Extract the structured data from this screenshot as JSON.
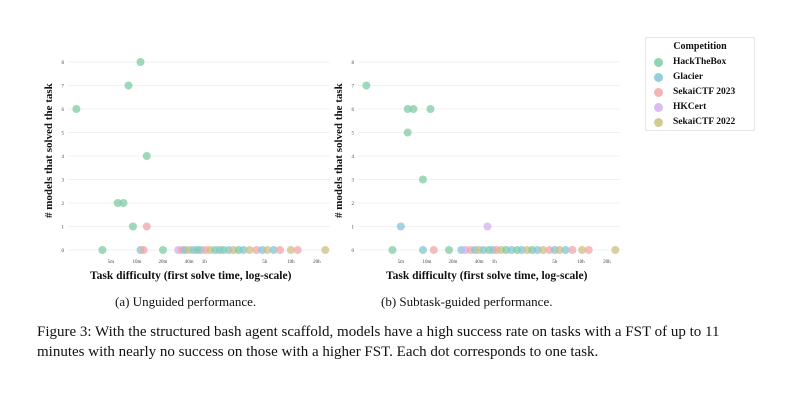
{
  "legend": {
    "title": "Competition",
    "items": [
      {
        "label": "HackTheBox",
        "color": "#7fcba5"
      },
      {
        "label": "Glacier",
        "color": "#83c6d6"
      },
      {
        "label": "SekaiCTF 2023",
        "color": "#f2a6aa"
      },
      {
        "label": "HKCert",
        "color": "#d3b0ef"
      },
      {
        "label": "SekaiCTF 2022",
        "color": "#cdbf82"
      }
    ]
  },
  "chart_data": [
    {
      "type": "scatter",
      "title": "",
      "xlabel": "Task difficulty (first solve time, log-scale)",
      "ylabel": "# models that solved the task",
      "x_scale": "log",
      "x_ticks": [
        "5m",
        "10m",
        "20m",
        "40m",
        "1h",
        "5h",
        "10h",
        "20h"
      ],
      "y_ticks": [
        "0",
        "1",
        "2",
        "3",
        "4",
        "5",
        "6",
        "7",
        "8"
      ],
      "ylim": [
        0,
        8
      ],
      "grid": true,
      "subcaption": "(a) Unguided performance.",
      "points": [
        {
          "x": 2,
          "y": 6,
          "series": "HackTheBox"
        },
        {
          "x": 11,
          "y": 8,
          "series": "HackTheBox"
        },
        {
          "x": 8,
          "y": 7,
          "series": "HackTheBox"
        },
        {
          "x": 13,
          "y": 4,
          "series": "HackTheBox"
        },
        {
          "x": 6,
          "y": 2,
          "series": "HackTheBox"
        },
        {
          "x": 7,
          "y": 2,
          "series": "HackTheBox"
        },
        {
          "x": 9,
          "y": 1,
          "series": "HackTheBox"
        },
        {
          "x": 13,
          "y": 1,
          "series": "SekaiCTF 2023"
        },
        {
          "x": 4,
          "y": 0,
          "series": "HackTheBox"
        },
        {
          "x": 11,
          "y": 0,
          "series": "Glacier"
        },
        {
          "x": 12,
          "y": 0,
          "series": "SekaiCTF 2023"
        },
        {
          "x": 20,
          "y": 0,
          "series": "HackTheBox"
        },
        {
          "x": 30,
          "y": 0,
          "series": "HKCert"
        },
        {
          "x": 33,
          "y": 0,
          "series": "SekaiCTF 2023"
        },
        {
          "x": 36,
          "y": 0,
          "series": "Glacier"
        },
        {
          "x": 40,
          "y": 0,
          "series": "SekaiCTF 2022"
        },
        {
          "x": 45,
          "y": 0,
          "series": "Glacier"
        },
        {
          "x": 50,
          "y": 0,
          "series": "HackTheBox"
        },
        {
          "x": 55,
          "y": 0,
          "series": "Glacier"
        },
        {
          "x": 62,
          "y": 0,
          "series": "SekaiCTF 2023"
        },
        {
          "x": 70,
          "y": 0,
          "series": "SekaiCTF 2022"
        },
        {
          "x": 80,
          "y": 0,
          "series": "HackTheBox"
        },
        {
          "x": 90,
          "y": 0,
          "series": "Glacier"
        },
        {
          "x": 100,
          "y": 0,
          "series": "HackTheBox"
        },
        {
          "x": 115,
          "y": 0,
          "series": "Glacier"
        },
        {
          "x": 130,
          "y": 0,
          "series": "SekaiCTF 2022"
        },
        {
          "x": 150,
          "y": 0,
          "series": "HackTheBox"
        },
        {
          "x": 170,
          "y": 0,
          "series": "Glacier"
        },
        {
          "x": 200,
          "y": 0,
          "series": "SekaiCTF 2022"
        },
        {
          "x": 240,
          "y": 0,
          "series": "SekaiCTF 2023"
        },
        {
          "x": 280,
          "y": 0,
          "series": "Glacier"
        },
        {
          "x": 320,
          "y": 0,
          "series": "SekaiCTF 2022"
        },
        {
          "x": 380,
          "y": 0,
          "series": "Glacier"
        },
        {
          "x": 450,
          "y": 0,
          "series": "SekaiCTF 2023"
        },
        {
          "x": 600,
          "y": 0,
          "series": "SekaiCTF 2022"
        },
        {
          "x": 720,
          "y": 0,
          "series": "SekaiCTF 2023"
        },
        {
          "x": 1500,
          "y": 0,
          "series": "SekaiCTF 2022"
        }
      ]
    },
    {
      "type": "scatter",
      "title": "",
      "xlabel": "Task difficulty (first solve time, log-scale)",
      "ylabel": "# models that solved the task",
      "x_scale": "log",
      "x_ticks": [
        "5m",
        "10m",
        "20m",
        "40m",
        "1h",
        "5h",
        "10h",
        "20h"
      ],
      "y_ticks": [
        "0",
        "1",
        "2",
        "3",
        "4",
        "5",
        "6",
        "7",
        "8"
      ],
      "ylim": [
        0,
        8
      ],
      "grid": true,
      "subcaption": "(b) Subtask-guided performance.",
      "points": [
        {
          "x": 2,
          "y": 7,
          "series": "HackTheBox"
        },
        {
          "x": 6,
          "y": 6,
          "series": "HackTheBox"
        },
        {
          "x": 7,
          "y": 6,
          "series": "HackTheBox"
        },
        {
          "x": 11,
          "y": 6,
          "series": "HackTheBox"
        },
        {
          "x": 6,
          "y": 5,
          "series": "HackTheBox"
        },
        {
          "x": 9,
          "y": 3,
          "series": "HackTheBox"
        },
        {
          "x": 5,
          "y": 1,
          "series": "Glacier"
        },
        {
          "x": 50,
          "y": 1,
          "series": "HKCert"
        },
        {
          "x": 4,
          "y": 0,
          "series": "HackTheBox"
        },
        {
          "x": 9,
          "y": 0,
          "series": "Glacier"
        },
        {
          "x": 12,
          "y": 0,
          "series": "SekaiCTF 2023"
        },
        {
          "x": 18,
          "y": 0,
          "series": "HackTheBox"
        },
        {
          "x": 25,
          "y": 0,
          "series": "Glacier"
        },
        {
          "x": 28,
          "y": 0,
          "series": "HKCert"
        },
        {
          "x": 32,
          "y": 0,
          "series": "SekaiCTF 2023"
        },
        {
          "x": 36,
          "y": 0,
          "series": "Glacier"
        },
        {
          "x": 40,
          "y": 0,
          "series": "SekaiCTF 2022"
        },
        {
          "x": 45,
          "y": 0,
          "series": "Glacier"
        },
        {
          "x": 52,
          "y": 0,
          "series": "HackTheBox"
        },
        {
          "x": 58,
          "y": 0,
          "series": "Glacier"
        },
        {
          "x": 64,
          "y": 0,
          "series": "SekaiCTF 2023"
        },
        {
          "x": 72,
          "y": 0,
          "series": "SekaiCTF 2022"
        },
        {
          "x": 82,
          "y": 0,
          "series": "HackTheBox"
        },
        {
          "x": 95,
          "y": 0,
          "series": "Glacier"
        },
        {
          "x": 110,
          "y": 0,
          "series": "HackTheBox"
        },
        {
          "x": 125,
          "y": 0,
          "series": "Glacier"
        },
        {
          "x": 145,
          "y": 0,
          "series": "SekaiCTF 2022"
        },
        {
          "x": 165,
          "y": 0,
          "series": "HackTheBox"
        },
        {
          "x": 190,
          "y": 0,
          "series": "Glacier"
        },
        {
          "x": 220,
          "y": 0,
          "series": "SekaiCTF 2022"
        },
        {
          "x": 260,
          "y": 0,
          "series": "SekaiCTF 2023"
        },
        {
          "x": 300,
          "y": 0,
          "series": "Glacier"
        },
        {
          "x": 340,
          "y": 0,
          "series": "SekaiCTF 2022"
        },
        {
          "x": 400,
          "y": 0,
          "series": "Glacier"
        },
        {
          "x": 480,
          "y": 0,
          "series": "SekaiCTF 2023"
        },
        {
          "x": 620,
          "y": 0,
          "series": "SekaiCTF 2022"
        },
        {
          "x": 740,
          "y": 0,
          "series": "SekaiCTF 2023"
        },
        {
          "x": 1500,
          "y": 0,
          "series": "SekaiCTF 2022"
        }
      ]
    }
  ],
  "caption": "Figure 3: With the structured bash agent scaffold, models have a high success rate on tasks with a FST of up to 11 minutes with nearly no success on those with a higher FST. Each dot corresponds to one task."
}
